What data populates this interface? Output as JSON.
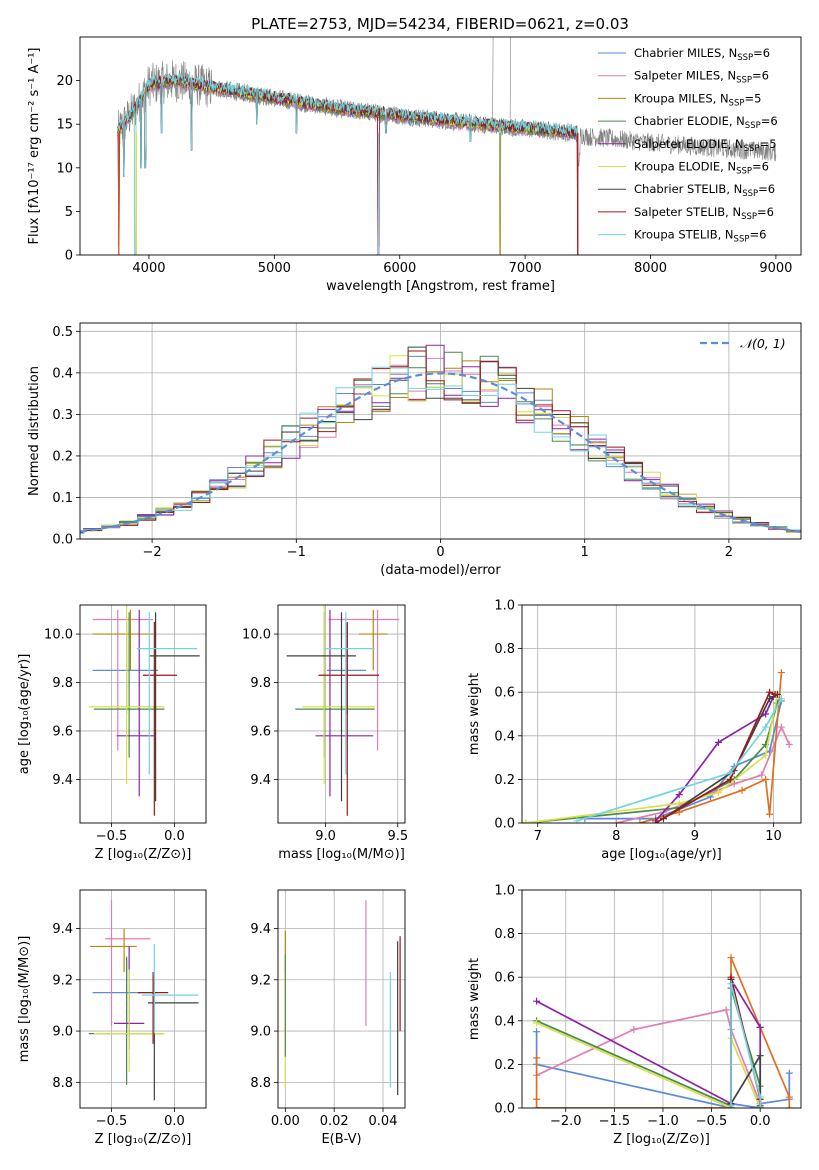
{
  "figure_title": "PLATE=2753, MJD=54234, FIBERID=0621, z=0.03",
  "colors": {
    "chabrier_miles": "#5a8ad8",
    "salpeter_miles": "#e07db5",
    "kroupa_miles": "#b8860b",
    "chabrier_elodie": "#4a8a4a",
    "salpeter_elodie": "#8b22a8",
    "kroupa_elodie": "#d8e04a",
    "chabrier_stelib": "#404040",
    "salpeter_stelib": "#9b1a1a",
    "kroupa_stelib": "#6fd6e0",
    "fit_orange": "#e07020",
    "normal_curve": "#5b8fd6",
    "grid": "#b0b0b0"
  },
  "chart_data": [
    {
      "id": "spectrum",
      "type": "line",
      "xlabel": "wavelength [Angstrom, rest frame]",
      "ylabel": "Flux [fλ10⁻¹⁷ erg cm⁻² s⁻¹ A⁻¹]",
      "xlim": [
        3450,
        9200
      ],
      "ylim": [
        0,
        25
      ],
      "xticks": [
        "4000",
        "5000",
        "6000",
        "7000",
        "8000",
        "9000"
      ],
      "yticks": [
        "0",
        "5",
        "10",
        "15",
        "20"
      ],
      "grid": false,
      "legend_position": "top-right",
      "legend": [
        "Chabrier MILES, N_SSP=6",
        "Salpeter MILES, N_SSP=6",
        "Kroupa MILES, N_SSP=5",
        "Chabrier ELODIE, N_SSP=6",
        "Salpeter ELODIE, N_SSP=5",
        "Kroupa ELODIE, N_SSP=6",
        "Chabrier STELIB, N_SSP=6",
        "Salpeter STELIB, N_SSP=6",
        "Kroupa STELIB, N_SSP=6"
      ],
      "data_anchors": {
        "x": [
          3750,
          3900,
          4000,
          4200,
          4500,
          5000,
          5500,
          6000,
          6500,
          7000,
          7400,
          7500,
          8000,
          8500,
          9000
        ],
        "y": [
          14,
          17,
          19.5,
          20,
          19.2,
          18,
          16.8,
          16,
          15.2,
          14.5,
          14,
          13.6,
          12.9,
          12.3,
          11.8
        ]
      },
      "model_range": [
        3750,
        7420
      ],
      "dips": [
        [
          3760,
          0
        ],
        [
          3800,
          9
        ],
        [
          3890,
          0
        ],
        [
          3935,
          10
        ],
        [
          3970,
          10
        ],
        [
          4100,
          14
        ],
        [
          4340,
          12
        ],
        [
          4861,
          15
        ],
        [
          5175,
          14
        ],
        [
          5890,
          14
        ],
        [
          5830,
          0
        ],
        [
          6563,
          13
        ],
        [
          6800,
          0
        ],
        [
          7420,
          0
        ]
      ]
    },
    {
      "id": "residuals",
      "type": "histogram",
      "xlabel": "(data-model)/error",
      "ylabel": "Normed distribution",
      "xlim": [
        -2.5,
        2.5
      ],
      "ylim": [
        0,
        0.52
      ],
      "xticks": [
        "−2",
        "−1",
        "0",
        "1",
        "2"
      ],
      "yticks": [
        "0.0",
        "0.1",
        "0.2",
        "0.3",
        "0.4",
        "0.5"
      ],
      "grid": true,
      "legend_position": "top-right",
      "legend": [
        "𝒩(0, 1)"
      ],
      "normal_curve": {
        "mean": 0,
        "sigma": 1
      }
    },
    {
      "id": "z-vs-age",
      "type": "errorbar",
      "xlabel": "Z [log₁₀(Z/Z⊙)]",
      "ylabel": "age  [log₁₀(age/yr)]",
      "xlim": [
        -0.75,
        0.25
      ],
      "ylim": [
        9.22,
        10.12
      ],
      "xticks": [
        "−0.5",
        "0.0"
      ],
      "yticks": [
        "9.4",
        "9.6",
        "9.8",
        "10.0"
      ],
      "grid": true,
      "points": [
        {
          "model": "chabrier_miles",
          "x": -0.38,
          "xerr": [
            0.27,
            0.25
          ],
          "y": 9.85,
          "yerr": [
            0.18,
            0.19
          ]
        },
        {
          "model": "salpeter_miles",
          "x": -0.45,
          "xerr": [
            0.2,
            0.28
          ],
          "y": 10.06,
          "yerr": [
            0.54,
            0.04
          ]
        },
        {
          "model": "kroupa_miles",
          "x": -0.35,
          "xerr": [
            0.3,
            0.18
          ],
          "y": 10.0,
          "yerr": [
            0.15,
            0.1
          ]
        },
        {
          "model": "chabrier_elodie",
          "x": -0.36,
          "xerr": [
            0.28,
            0.28
          ],
          "y": 9.69,
          "yerr": [
            0.2,
            0.4
          ]
        },
        {
          "model": "salpeter_elodie",
          "x": -0.28,
          "xerr": [
            0.18,
            0.12
          ],
          "y": 9.58,
          "yerr": [
            0.25,
            0.52
          ]
        },
        {
          "model": "kroupa_elodie",
          "x": -0.38,
          "xerr": [
            0.3,
            0.3
          ],
          "y": 9.7,
          "yerr": [
            0.32,
            0.42
          ]
        },
        {
          "model": "chabrier_stelib",
          "x": -0.15,
          "xerr": [
            0.05,
            0.35
          ],
          "y": 9.91,
          "yerr": [
            0.6,
            0.18
          ]
        },
        {
          "model": "salpeter_stelib",
          "x": -0.16,
          "xerr": [
            0.09,
            0.18
          ],
          "y": 9.83,
          "yerr": [
            0.58,
            0.22
          ]
        },
        {
          "model": "kroupa_stelib",
          "x": -0.2,
          "xerr": [
            0.1,
            0.38
          ],
          "y": 9.94,
          "yerr": [
            0.52,
            0.15
          ]
        }
      ]
    },
    {
      "id": "mass-vs-age",
      "type": "errorbar",
      "xlabel": "mass [log₁₀(M/M⊙)]",
      "ylabel": "",
      "xlim": [
        8.67,
        9.55
      ],
      "ylim": [
        9.22,
        10.12
      ],
      "xticks": [
        "9.0",
        "9.5"
      ],
      "yticks": [
        "9.4",
        "9.6",
        "9.8",
        "10.0"
      ],
      "grid": true,
      "points": [
        {
          "model": "chabrier_miles",
          "x": 9.15,
          "xerr": [
            0.14,
            0.13
          ],
          "y": 9.85,
          "yerr": [
            0.18,
            0.19
          ]
        },
        {
          "model": "salpeter_miles",
          "x": 9.36,
          "xerr": [
            0.34,
            0.15
          ],
          "y": 10.06,
          "yerr": [
            0.54,
            0.04
          ]
        },
        {
          "model": "kroupa_miles",
          "x": 9.33,
          "xerr": [
            0.1,
            0.1
          ],
          "y": 10.0,
          "yerr": [
            0.15,
            0.1
          ]
        },
        {
          "model": "chabrier_elodie",
          "x": 8.99,
          "xerr": [
            0.2,
            0.35
          ],
          "y": 9.69,
          "yerr": [
            0.2,
            0.4
          ]
        },
        {
          "model": "salpeter_elodie",
          "x": 9.03,
          "xerr": [
            0.1,
            0.3
          ],
          "y": 9.58,
          "yerr": [
            0.25,
            0.52
          ]
        },
        {
          "model": "kroupa_elodie",
          "x": 8.99,
          "xerr": [
            0.15,
            0.35
          ],
          "y": 9.7,
          "yerr": [
            0.32,
            0.42
          ]
        },
        {
          "model": "chabrier_stelib",
          "x": 9.11,
          "xerr": [
            0.38,
            0.1
          ],
          "y": 9.91,
          "yerr": [
            0.6,
            0.18
          ]
        },
        {
          "model": "salpeter_stelib",
          "x": 9.15,
          "xerr": [
            0.2,
            0.22
          ],
          "y": 9.83,
          "yerr": [
            0.58,
            0.22
          ]
        },
        {
          "model": "kroupa_stelib",
          "x": 9.14,
          "xerr": [
            0.15,
            0.2
          ],
          "y": 9.94,
          "yerr": [
            0.52,
            0.15
          ]
        }
      ]
    },
    {
      "id": "age-vs-weight",
      "type": "line",
      "xlabel": "age  [log₁₀(age/yr)]",
      "ylabel": "mass weight",
      "xlim": [
        6.8,
        10.35
      ],
      "ylim": [
        0,
        1
      ],
      "xticks": [
        "7",
        "8",
        "9",
        "10"
      ],
      "yticks": [
        "0.0",
        "0.2",
        "0.4",
        "0.6",
        "0.8",
        "1.0"
      ],
      "grid": true,
      "series": [
        {
          "model": "chabrier_miles",
          "x": [
            7.6,
            8.5,
            9.2,
            9.5,
            9.95,
            10.1
          ],
          "y": [
            0.02,
            0.02,
            0.12,
            0.26,
            0.33,
            0.56
          ]
        },
        {
          "model": "salpeter_miles",
          "x": [
            8.0,
            8.6,
            9.5,
            9.85,
            10.1,
            10.2
          ],
          "y": [
            0.0,
            0.05,
            0.18,
            0.22,
            0.44,
            0.36
          ]
        },
        {
          "model": "fit_orange",
          "x": [
            8.3,
            8.8,
            9.6,
            9.9,
            9.95,
            10.1
          ],
          "y": [
            0.0,
            0.05,
            0.15,
            0.2,
            0.04,
            0.69
          ]
        },
        {
          "model": "chabrier_elodie",
          "x": [
            6.85,
            8.8,
            9.5,
            9.9,
            10.05
          ],
          "y": [
            0.0,
            0.07,
            0.2,
            0.36,
            0.55
          ]
        },
        {
          "model": "salpeter_elodie",
          "x": [
            8.5,
            8.8,
            9.3,
            9.9,
            10.0
          ],
          "y": [
            0.01,
            0.13,
            0.37,
            0.5,
            0.58
          ]
        },
        {
          "model": "kroupa_elodie",
          "x": [
            6.85,
            8.8,
            9.3,
            9.9,
            10.05
          ],
          "y": [
            0.0,
            0.09,
            0.14,
            0.31,
            0.59
          ]
        },
        {
          "model": "chabrier_stelib",
          "x": [
            8.6,
            9.5,
            9.95,
            10.05
          ],
          "y": [
            0.02,
            0.24,
            0.57,
            0.59
          ]
        },
        {
          "model": "salpeter_stelib",
          "x": [
            8.5,
            9.45,
            9.95,
            10.02
          ],
          "y": [
            0.0,
            0.2,
            0.6,
            0.59
          ]
        },
        {
          "model": "kroupa_stelib",
          "x": [
            7.5,
            9.45,
            9.9,
            10.1
          ],
          "y": [
            0.01,
            0.23,
            0.44,
            0.57
          ]
        }
      ]
    },
    {
      "id": "z-vs-mass",
      "type": "errorbar",
      "xlabel": "Z [log₁₀(Z/Z⊙)]",
      "ylabel": "mass [log₁₀(M/M⊙)]",
      "xlim": [
        -0.75,
        0.25
      ],
      "ylim": [
        8.7,
        9.55
      ],
      "xticks": [
        "−0.5",
        "0.0"
      ],
      "yticks": [
        "8.8",
        "9.0",
        "9.2",
        "9.4"
      ],
      "grid": true,
      "points": [
        {
          "model": "chabrier_miles",
          "x": -0.38,
          "xerr": [
            0.27,
            0.25
          ],
          "y": 9.15,
          "yerr": [
            0.14,
            0.13
          ]
        },
        {
          "model": "salpeter_miles",
          "x": -0.5,
          "xerr": [
            0.05,
            0.31
          ],
          "y": 9.36,
          "yerr": [
            0.34,
            0.15
          ]
        },
        {
          "model": "kroupa_miles",
          "x": -0.4,
          "xerr": [
            0.27,
            0.1
          ],
          "y": 9.33,
          "yerr": [
            0.1,
            0.07
          ]
        },
        {
          "model": "chabrier_elodie",
          "x": -0.38,
          "xerr": [
            0.3,
            0.3
          ],
          "y": 8.99,
          "yerr": [
            0.2,
            0.3
          ]
        },
        {
          "model": "salpeter_elodie",
          "x": -0.36,
          "xerr": [
            0.12,
            0.12
          ],
          "y": 9.03,
          "yerr": [
            0.1,
            0.3
          ]
        },
        {
          "model": "kroupa_elodie",
          "x": -0.36,
          "xerr": [
            0.28,
            0.28
          ],
          "y": 8.99,
          "yerr": [
            0.15,
            0.25
          ]
        },
        {
          "model": "chabrier_stelib",
          "x": -0.16,
          "xerr": [
            0.05,
            0.35
          ],
          "y": 9.11,
          "yerr": [
            0.38,
            0.1
          ]
        },
        {
          "model": "salpeter_stelib",
          "x": -0.17,
          "xerr": [
            0.12,
            0.12
          ],
          "y": 9.15,
          "yerr": [
            0.2,
            0.08
          ]
        },
        {
          "model": "kroupa_stelib",
          "x": -0.16,
          "xerr": [
            0.1,
            0.35
          ],
          "y": 9.14,
          "yerr": [
            0.15,
            0.2
          ]
        }
      ]
    },
    {
      "id": "ebv-vs-mass",
      "type": "errorbar",
      "xlabel": "E(B-V)",
      "ylabel": "",
      "xlim": [
        -0.003,
        0.049
      ],
      "ylim": [
        8.7,
        9.55
      ],
      "xticks": [
        "0.00",
        "0.02",
        "0.04"
      ],
      "yticks": [
        "8.8",
        "9.0",
        "9.2",
        "9.4"
      ],
      "grid": true,
      "points": [
        {
          "model": "kroupa_miles",
          "x": 0.0,
          "xerr": [
            0,
            0
          ],
          "y": 9.33,
          "yerr": [
            0.1,
            0.06
          ]
        },
        {
          "model": "kroupa_elodie",
          "x": 0.0,
          "xerr": [
            0,
            0
          ],
          "y": 9.0,
          "yerr": [
            0.22,
            0.3
          ]
        },
        {
          "model": "chabrier_elodie",
          "x": 0.0,
          "xerr": [
            0,
            0
          ],
          "y": 9.1,
          "yerr": [
            0.2,
            0.2
          ]
        },
        {
          "model": "salpeter_miles",
          "x": 0.033,
          "xerr": [
            0,
            0
          ],
          "y": 9.26,
          "yerr": [
            0.24,
            0.25
          ]
        },
        {
          "model": "kroupa_stelib",
          "x": 0.043,
          "xerr": [
            0,
            0
          ],
          "y": 9.0,
          "yerr": [
            0.22,
            0.23
          ]
        },
        {
          "model": "salpeter_stelib",
          "x": 0.047,
          "xerr": [
            0,
            0
          ],
          "y": 9.2,
          "yerr": [
            0.2,
            0.17
          ]
        },
        {
          "model": "chabrier_stelib",
          "x": 0.046,
          "xerr": [
            0,
            0
          ],
          "y": 9.05,
          "yerr": [
            0.3,
            0.3
          ]
        }
      ]
    },
    {
      "id": "z-vs-weight",
      "type": "line",
      "xlabel": "Z [log₁₀(Z/Z⊙)]",
      "ylabel": "mass weight",
      "xlim": [
        -2.45,
        0.42
      ],
      "ylim": [
        0,
        1
      ],
      "xticks": [
        "−2.0",
        "−1.5",
        "−1.0",
        "−0.5",
        "0.0"
      ],
      "yticks": [
        "0.0",
        "0.2",
        "0.4",
        "0.6",
        "0.8",
        "1.0"
      ],
      "grid": true,
      "series": [
        {
          "model": "chabrier_miles",
          "x": [
            -2.3,
            -2.3,
            -0.3,
            -0.3,
            0.0,
            0.0,
            0.3,
            0.3
          ],
          "y": [
            0.35,
            0.2,
            0.0,
            0.02,
            0.0,
            0.02,
            0.04,
            0.16
          ]
        },
        {
          "model": "salpeter_miles",
          "x": [
            -2.3,
            -1.3,
            -0.35,
            -0.3,
            0.0,
            0.0
          ],
          "y": [
            0.15,
            0.36,
            0.45,
            0.36,
            0.02,
            0.0
          ]
        },
        {
          "model": "fit_orange",
          "x": [
            -2.3,
            -2.3,
            -2.3,
            -0.3,
            -0.3,
            0.0,
            0.3,
            0.3
          ],
          "y": [
            0.04,
            0.23,
            0.0,
            0.0,
            0.69,
            0.37,
            0.05,
            0.0
          ]
        },
        {
          "model": "chabrier_elodie",
          "x": [
            -2.3,
            -0.3,
            -0.3,
            0.0,
            0.0
          ],
          "y": [
            0.4,
            0.01,
            0.55,
            0.1,
            0.0
          ]
        },
        {
          "model": "salpeter_elodie",
          "x": [
            -2.3,
            -0.3,
            -0.3,
            0.0,
            0.0
          ],
          "y": [
            0.49,
            0.02,
            0.59,
            0.37,
            0.0
          ]
        },
        {
          "model": "kroupa_elodie",
          "x": [
            -2.3,
            -0.3,
            -0.3,
            0.0
          ],
          "y": [
            0.39,
            0.0,
            0.32,
            0.0
          ]
        },
        {
          "model": "chabrier_stelib",
          "x": [
            -0.3,
            -0.3,
            -0.3,
            0.0,
            0.0
          ],
          "y": [
            0.0,
            0.59,
            0.02,
            0.24,
            0.01
          ]
        },
        {
          "model": "salpeter_stelib",
          "x": [
            -0.3,
            -0.3,
            0.0,
            0.0
          ],
          "y": [
            0.0,
            0.6,
            0.04,
            0.0
          ]
        },
        {
          "model": "kroupa_stelib",
          "x": [
            -0.3,
            -0.3,
            0.0,
            0.0
          ],
          "y": [
            0.01,
            0.57,
            0.05,
            0.0
          ]
        }
      ]
    }
  ]
}
